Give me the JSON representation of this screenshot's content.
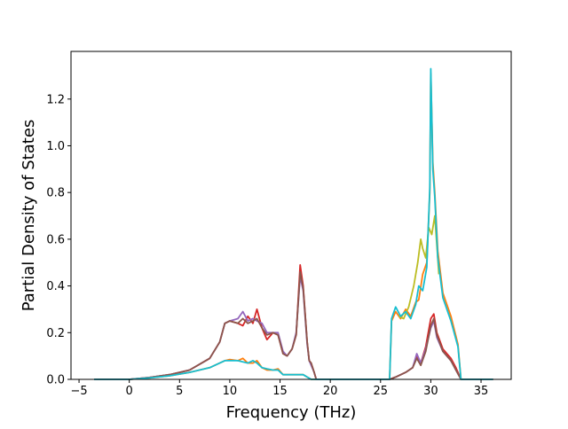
{
  "chart_data": {
    "type": "line",
    "xlabel": "Frequency (THz)",
    "ylabel": "Partial Density of States",
    "xlim": [
      -5.8,
      38.0
    ],
    "ylim": [
      0.0,
      1.404
    ],
    "xticks": [
      -5,
      0,
      5,
      10,
      15,
      20,
      25,
      30,
      35
    ],
    "yticks": [
      0.0,
      0.2,
      0.4,
      0.6,
      0.8,
      1.0,
      1.2
    ],
    "xtick_labels": [
      "−5",
      "0",
      "5",
      "10",
      "15",
      "20",
      "25",
      "30",
      "35"
    ],
    "ytick_labels": [
      "0.0",
      "0.2",
      "0.4",
      "0.6",
      "0.8",
      "1.0",
      "1.2"
    ],
    "grid": false,
    "legend": "none",
    "colors": [
      "#1f77b4",
      "#ff7f0e",
      "#2ca02c",
      "#d62728",
      "#9467bd",
      "#8c564b",
      "#e377c2",
      "#7f7f7f",
      "#bcbd22",
      "#17becf"
    ],
    "series": [
      {
        "color": "#d62728",
        "x": [
          -3.5,
          0,
          2,
          4,
          6,
          8,
          9,
          9.5,
          10,
          10.8,
          11.3,
          11.8,
          12.3,
          12.7,
          13.2,
          13.7,
          14.3,
          14.8,
          15.3,
          15.7,
          16.2,
          16.6,
          17.0,
          17.3,
          17.7,
          17.9,
          18.1,
          18.4,
          18.6,
          20,
          25,
          25.9,
          26.5,
          27.5,
          28.2,
          28.6,
          29.0,
          29.5,
          30.0,
          30.3,
          30.6,
          31.2,
          32.0,
          32.5,
          33.0,
          36.2
        ],
        "y": [
          0,
          0,
          0.008,
          0.02,
          0.04,
          0.09,
          0.16,
          0.24,
          0.25,
          0.24,
          0.23,
          0.27,
          0.24,
          0.3,
          0.22,
          0.17,
          0.2,
          0.19,
          0.11,
          0.1,
          0.13,
          0.19,
          0.49,
          0.4,
          0.16,
          0.08,
          0.07,
          0.03,
          0,
          0,
          0,
          0,
          0.01,
          0.03,
          0.05,
          0.1,
          0.07,
          0.14,
          0.26,
          0.28,
          0.2,
          0.13,
          0.09,
          0.05,
          0,
          0
        ]
      },
      {
        "color": "#ff7f0e",
        "x": [
          -3.5,
          0,
          2,
          4,
          6,
          8,
          9,
          9.5,
          10,
          10.8,
          11.3,
          11.8,
          12.3,
          12.7,
          13.2,
          13.7,
          14.3,
          14.8,
          15.3,
          15.7,
          16.2,
          16.6,
          17.0,
          17.3,
          17.7,
          17.9,
          18.1,
          18.4,
          18.6,
          20,
          25,
          25.9,
          26.1,
          26.5,
          27.0,
          27.5,
          28.0,
          28.5,
          28.8,
          29.2,
          29.6,
          29.9,
          30.0,
          30.2,
          30.4,
          30.7,
          31.2,
          32.0,
          32.7,
          33.0,
          36.2
        ],
        "y": [
          0,
          0,
          0.006,
          0.015,
          0.03,
          0.05,
          0.07,
          0.08,
          0.085,
          0.08,
          0.09,
          0.07,
          0.07,
          0.08,
          0.05,
          0.04,
          0.04,
          0.045,
          0.02,
          0.02,
          0.02,
          0.02,
          0.02,
          0.02,
          0.01,
          0.005,
          0,
          0,
          0,
          0,
          0,
          0,
          0.25,
          0.29,
          0.26,
          0.3,
          0.27,
          0.33,
          0.34,
          0.45,
          0.5,
          0.8,
          1.31,
          0.93,
          0.8,
          0.55,
          0.37,
          0.27,
          0.15,
          0,
          0
        ]
      },
      {
        "color": "#bcbd22",
        "x": [
          26.8,
          27.3,
          27.8,
          28.3,
          28.7,
          29.0,
          29.2,
          29.5,
          29.8,
          30.1,
          30.4,
          30.8
        ],
        "y": [
          0.27,
          0.26,
          0.31,
          0.4,
          0.5,
          0.6,
          0.56,
          0.52,
          0.65,
          0.62,
          0.7,
          0.45
        ]
      },
      {
        "color": "#9467bd",
        "x": [
          -3.5,
          0,
          2,
          4,
          6,
          8,
          9,
          9.5,
          10,
          10.8,
          11.3,
          11.8,
          12.3,
          12.7,
          13.2,
          13.7,
          14.3,
          14.8,
          15.3,
          15.7,
          16.2,
          16.6,
          17.0,
          17.3,
          17.7,
          17.9,
          18.1,
          18.4,
          18.6,
          20,
          25,
          25.9,
          26.5,
          27.5,
          28.2,
          28.6,
          29.0,
          29.5,
          30.0,
          30.3,
          30.6,
          31.2,
          32.0,
          32.5,
          33.0,
          36.2
        ],
        "y": [
          0,
          0,
          0.008,
          0.02,
          0.04,
          0.09,
          0.16,
          0.24,
          0.25,
          0.26,
          0.29,
          0.25,
          0.26,
          0.25,
          0.24,
          0.2,
          0.2,
          0.2,
          0.12,
          0.1,
          0.13,
          0.2,
          0.44,
          0.38,
          0.15,
          0.08,
          0.06,
          0.03,
          0,
          0,
          0,
          0,
          0.01,
          0.03,
          0.05,
          0.11,
          0.07,
          0.13,
          0.22,
          0.25,
          0.18,
          0.12,
          0.08,
          0.04,
          0,
          0
        ]
      },
      {
        "color": "#8c564b",
        "x": [
          -3.5,
          0,
          2,
          4,
          6,
          8,
          9,
          9.5,
          10,
          10.8,
          11.3,
          11.8,
          12.3,
          12.7,
          13.2,
          13.7,
          14.3,
          14.8,
          15.3,
          15.7,
          16.2,
          16.6,
          17.0,
          17.3,
          17.7,
          17.9,
          18.1,
          18.4,
          18.6,
          20,
          25,
          25.9,
          26.5,
          27.5,
          28.2,
          28.6,
          29.0,
          29.5,
          30.0,
          30.3,
          30.6,
          31.2,
          32.0,
          32.5,
          33.0,
          36.2
        ],
        "y": [
          0,
          0,
          0.008,
          0.02,
          0.04,
          0.09,
          0.16,
          0.24,
          0.25,
          0.24,
          0.26,
          0.24,
          0.25,
          0.26,
          0.22,
          0.19,
          0.2,
          0.19,
          0.11,
          0.1,
          0.13,
          0.19,
          0.46,
          0.39,
          0.16,
          0.08,
          0.07,
          0.03,
          0,
          0,
          0,
          0,
          0.01,
          0.03,
          0.05,
          0.09,
          0.06,
          0.12,
          0.23,
          0.26,
          0.19,
          0.12,
          0.08,
          0.04,
          0,
          0
        ]
      },
      {
        "color": "#17becf",
        "x": [
          -3.5,
          0,
          2,
          4,
          6,
          8,
          9,
          9.5,
          10,
          10.8,
          11.3,
          11.8,
          12.3,
          12.7,
          13.2,
          13.7,
          14.3,
          14.8,
          15.3,
          15.7,
          16.2,
          16.6,
          17.0,
          17.3,
          17.7,
          17.9,
          18.1,
          18.4,
          18.6,
          20,
          25,
          25.9,
          26.1,
          26.5,
          27.0,
          27.5,
          28.0,
          28.5,
          28.8,
          29.2,
          29.6,
          29.9,
          30.0,
          30.2,
          30.4,
          30.7,
          31.2,
          32.0,
          32.7,
          33.0,
          36.2
        ],
        "y": [
          0,
          0,
          0.006,
          0.015,
          0.03,
          0.05,
          0.07,
          0.08,
          0.08,
          0.08,
          0.075,
          0.07,
          0.08,
          0.07,
          0.05,
          0.045,
          0.04,
          0.04,
          0.02,
          0.02,
          0.02,
          0.02,
          0.02,
          0.02,
          0.01,
          0.005,
          0,
          0,
          0,
          0,
          0,
          0,
          0.26,
          0.31,
          0.27,
          0.29,
          0.26,
          0.32,
          0.4,
          0.38,
          0.48,
          0.82,
          1.33,
          0.9,
          0.78,
          0.52,
          0.35,
          0.25,
          0.14,
          0,
          0
        ]
      }
    ]
  }
}
